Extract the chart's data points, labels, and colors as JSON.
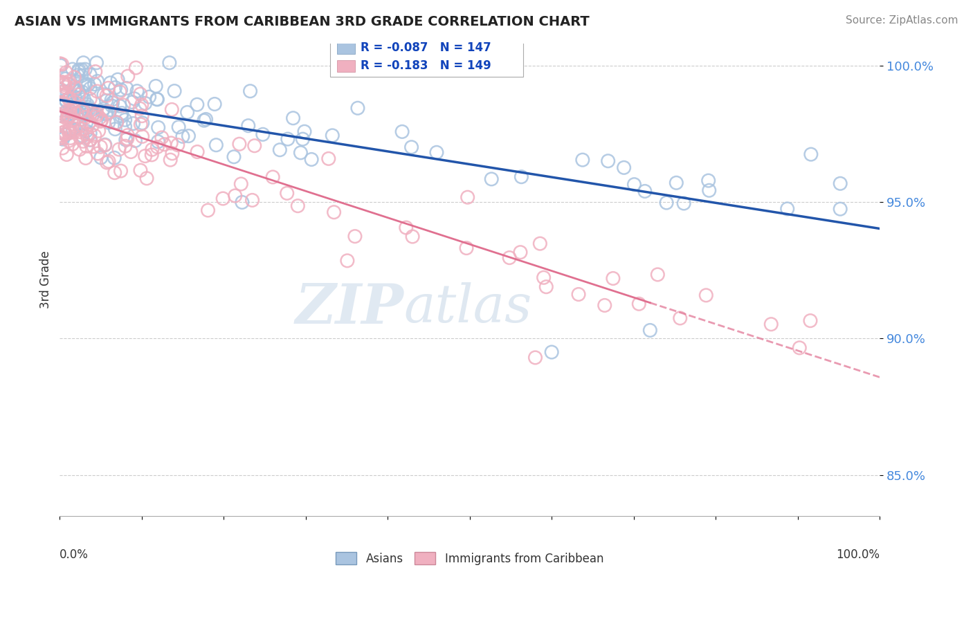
{
  "title": "ASIAN VS IMMIGRANTS FROM CARIBBEAN 3RD GRADE CORRELATION CHART",
  "source": "Source: ZipAtlas.com",
  "ylabel": "3rd Grade",
  "r_asian": -0.087,
  "n_asian": 147,
  "r_carib": -0.183,
  "n_carib": 149,
  "color_asian": "#aac4e0",
  "color_carib": "#f0b0c0",
  "trend_asian": "#2255aa",
  "trend_carib": "#e07090",
  "watermark_zip": "ZIP",
  "watermark_atlas": "atlas",
  "ymin": 0.835,
  "ymax": 1.008,
  "xmin": 0.0,
  "xmax": 1.0,
  "yticks": [
    0.85,
    0.9,
    0.95,
    1.0
  ],
  "ytick_labels": [
    "85.0%",
    "90.0%",
    "95.0%",
    "100.0%"
  ],
  "legend_label_asian": "Asians",
  "legend_label_carib": "Immigrants from Caribbean"
}
